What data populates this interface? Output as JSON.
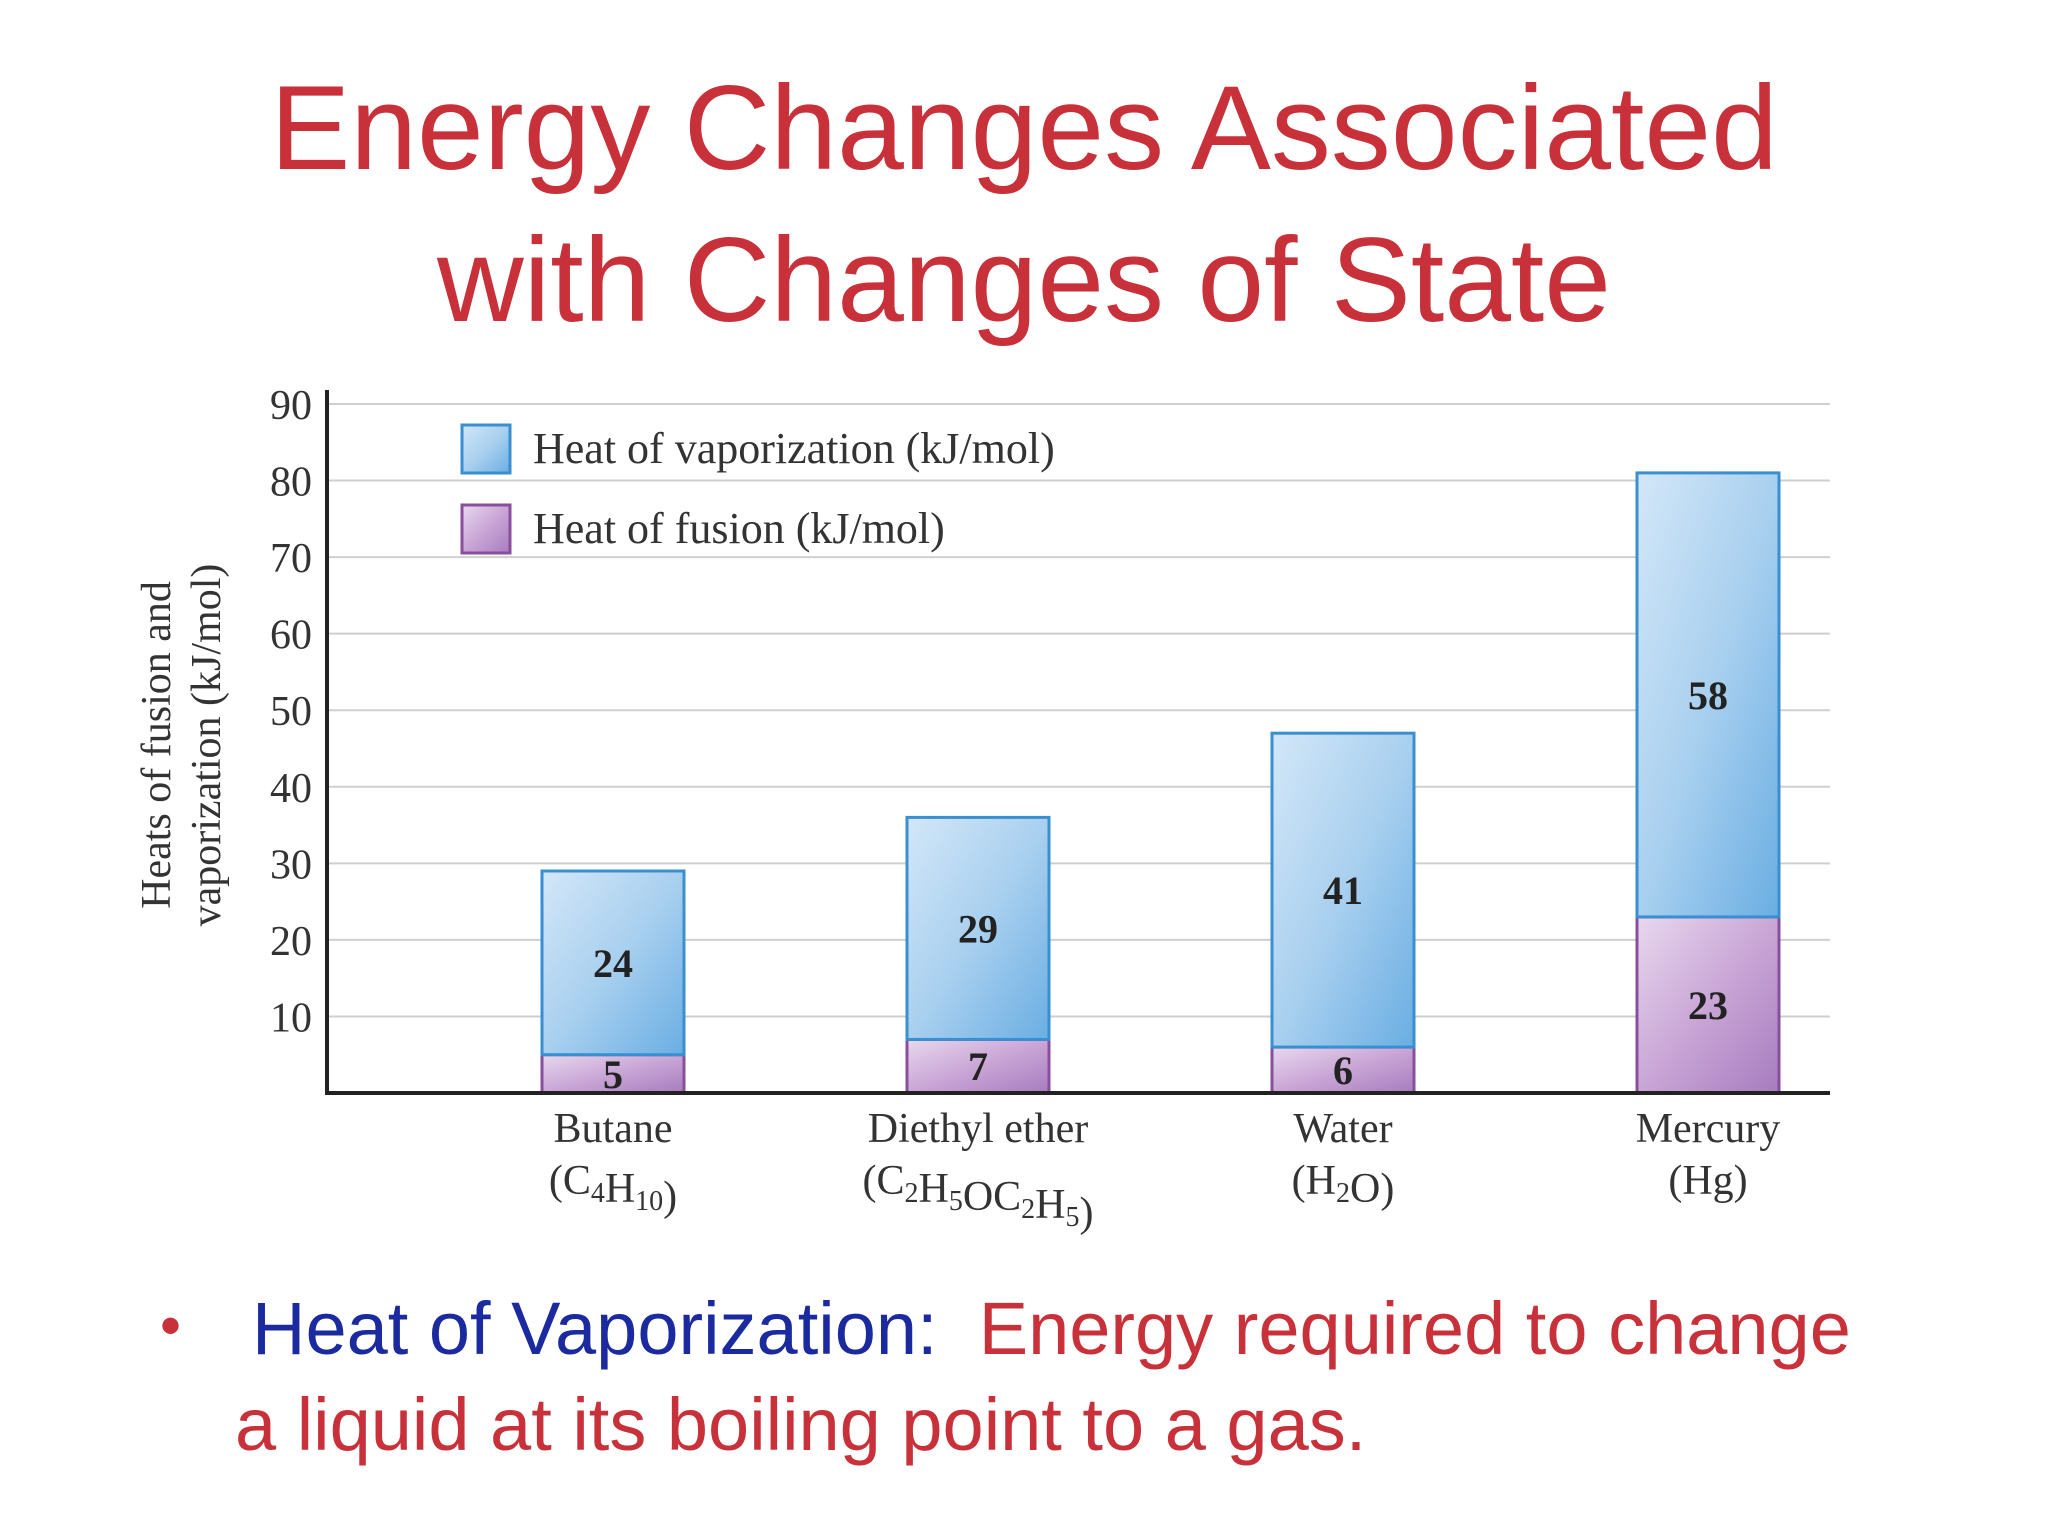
{
  "title": {
    "line1": "Energy Changes Associated",
    "line2": "with Changes of State"
  },
  "chart_data": {
    "type": "bar",
    "stacked": true,
    "ylabel_line1": "Heats of fusion and",
    "ylabel_line2": "vaporization (kJ/mol)",
    "ylim": [
      0,
      90
    ],
    "yticks": [
      10,
      20,
      30,
      40,
      50,
      60,
      70,
      80,
      90
    ],
    "grid": true,
    "legend_position": "top-left",
    "categories": [
      {
        "name": "Butane",
        "formula": "(C4H10)"
      },
      {
        "name": "Diethyl ether",
        "formula": "(C2H5OC2H5)"
      },
      {
        "name": "Water",
        "formula": "(H2O)"
      },
      {
        "name": "Mercury",
        "formula": "(Hg)"
      }
    ],
    "series": [
      {
        "name": "Heat of fusion (kJ/mol)",
        "values": [
          5,
          7,
          6,
          23
        ],
        "color": "#c9a6d6",
        "edge": "#8a4f9c"
      },
      {
        "name": "Heat of vaporization (kJ/mol)",
        "values": [
          24,
          29,
          41,
          58
        ],
        "color": "#a9d0ef",
        "edge": "#3a8fd0"
      }
    ]
  },
  "bullet": {
    "term": "Heat of Vaporization:",
    "line1_rest": "Energy required to change",
    "line2": "a liquid at its boiling point to a gas."
  }
}
